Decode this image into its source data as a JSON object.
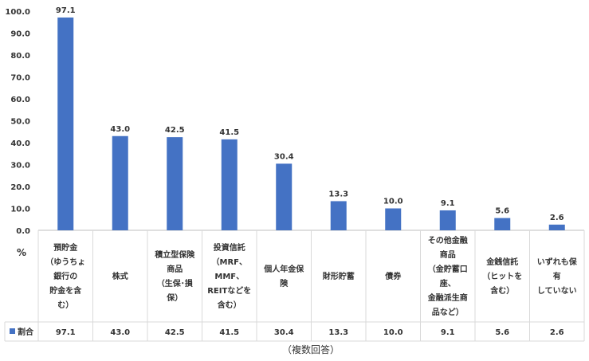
{
  "chart_data": {
    "type": "bar",
    "categories": [
      "預貯金（ゆうちょ銀行の貯金を含む）",
      "株式",
      "積立型保険商品（生保・損保）",
      "投資信託（MRF、MMF、REITなどを含む）",
      "個人年金保険",
      "財形貯蓄",
      "債券",
      "その他金融商品（金貯蓄口座、金融派生商品など）",
      "金銭信託（ヒットを含む）",
      "いずれも保有していない"
    ],
    "category_lines": [
      [
        "預貯金",
        "（ゆうちょ",
        "銀行の",
        "貯金を含",
        "む）"
      ],
      [
        "株式"
      ],
      [
        "積立型保険",
        "商品",
        "（生保･損",
        "保）"
      ],
      [
        "投資信託",
        "（MRF、",
        "MMF、",
        "REITなどを",
        "含む）"
      ],
      [
        "個人年金保",
        "険"
      ],
      [
        "財形貯蓄"
      ],
      [
        "債券"
      ],
      [
        "その他金融",
        "商品",
        "（金貯蓄口",
        "座、",
        "金融派生商",
        "品など）"
      ],
      [
        "金銭信託",
        "（ヒットを",
        "含む）"
      ],
      [
        "いずれも保",
        "有",
        "していない"
      ]
    ],
    "series": [
      {
        "name": "割合",
        "values": [
          97.1,
          43.0,
          42.5,
          41.5,
          30.4,
          13.3,
          10.0,
          9.1,
          5.6,
          2.6
        ],
        "value_labels": [
          "97.1",
          "43.0",
          "42.5",
          "41.5",
          "30.4",
          "13.3",
          "10.0",
          "9.1",
          "5.6",
          "2.6"
        ],
        "color": "#4472C4"
      }
    ],
    "unit_label": "%",
    "y_ticks": [
      "0.0",
      "10.0",
      "20.0",
      "30.0",
      "40.0",
      "50.0",
      "60.0",
      "70.0",
      "80.0",
      "90.0",
      "100.0"
    ],
    "ylim": [
      0,
      100
    ],
    "grid": false,
    "legend": "data-table",
    "footnote": "（複数回答）"
  }
}
